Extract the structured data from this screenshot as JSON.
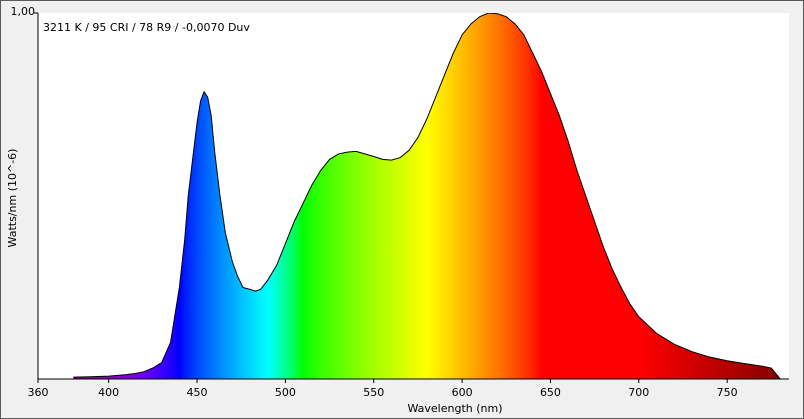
{
  "chart_data": {
    "type": "area",
    "title": "",
    "annotation": "3211 K / 95 CRI / 78 R9 / -0,0070 Duv",
    "xlabel": "Wavelength (nm)",
    "ylabel": "Watts/nm (10^-6)",
    "xlim": [
      360,
      785
    ],
    "ylim": [
      0,
      1.0
    ],
    "x_ticks": [
      360,
      400,
      450,
      500,
      550,
      600,
      650,
      700,
      750
    ],
    "x_tick_labels": [
      "360",
      "400",
      "450",
      "500",
      "550",
      "600",
      "650",
      "700",
      "750"
    ],
    "y_tick_labels": [
      "1,00"
    ],
    "y_ticks": [
      1.0
    ],
    "grid": false,
    "legend": "none",
    "series": [
      {
        "x": [
          380,
          390,
          400,
          405,
          410,
          415,
          420,
          425,
          430,
          435,
          440,
          443,
          445,
          448,
          450,
          452,
          454,
          456,
          458,
          460,
          463,
          466,
          470,
          473,
          476,
          480,
          483,
          486,
          490,
          495,
          500,
          505,
          510,
          515,
          520,
          525,
          530,
          535,
          540,
          545,
          550,
          555,
          560,
          565,
          570,
          575,
          580,
          585,
          590,
          595,
          600,
          605,
          610,
          615,
          620,
          625,
          630,
          635,
          640,
          645,
          650,
          655,
          660,
          665,
          670,
          675,
          680,
          685,
          690,
          695,
          700,
          710,
          720,
          730,
          740,
          750,
          760,
          770,
          775,
          780
        ],
        "y": [
          0.005,
          0.006,
          0.008,
          0.01,
          0.012,
          0.015,
          0.02,
          0.03,
          0.045,
          0.1,
          0.25,
          0.38,
          0.5,
          0.62,
          0.7,
          0.76,
          0.785,
          0.77,
          0.72,
          0.62,
          0.5,
          0.4,
          0.32,
          0.28,
          0.25,
          0.245,
          0.24,
          0.245,
          0.27,
          0.31,
          0.37,
          0.43,
          0.48,
          0.53,
          0.57,
          0.6,
          0.615,
          0.62,
          0.622,
          0.615,
          0.608,
          0.6,
          0.598,
          0.605,
          0.625,
          0.66,
          0.71,
          0.77,
          0.83,
          0.89,
          0.94,
          0.97,
          0.99,
          1.0,
          0.998,
          0.99,
          0.97,
          0.94,
          0.89,
          0.84,
          0.78,
          0.72,
          0.65,
          0.57,
          0.5,
          0.43,
          0.36,
          0.3,
          0.25,
          0.205,
          0.17,
          0.125,
          0.095,
          0.075,
          0.06,
          0.05,
          0.042,
          0.035,
          0.03,
          0.0
        ]
      }
    ]
  }
}
